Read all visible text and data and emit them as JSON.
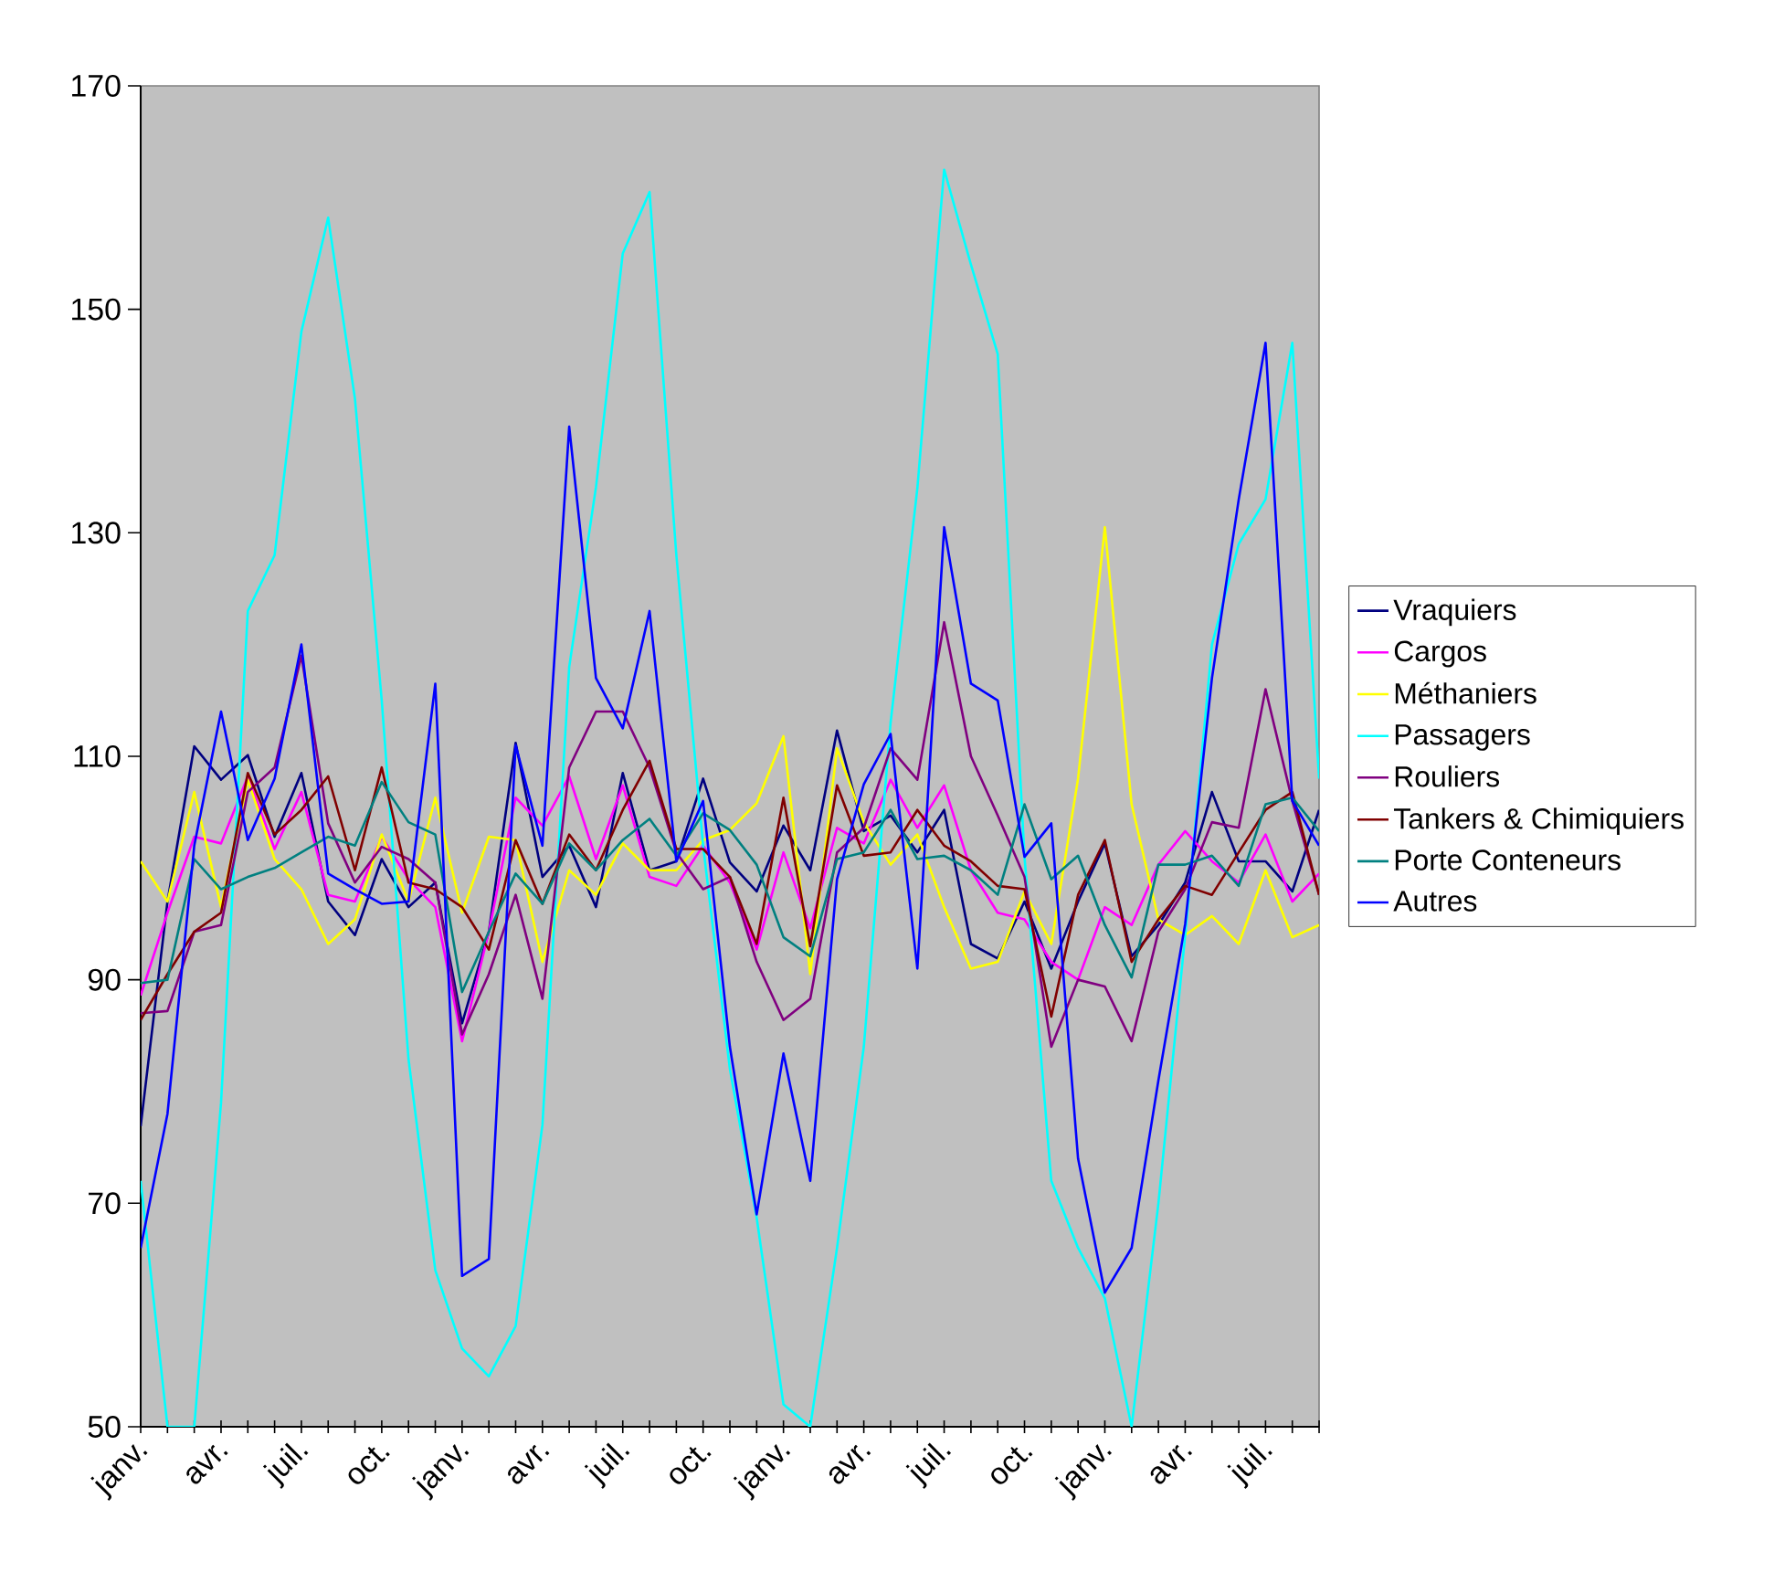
{
  "chart_data": {
    "type": "line",
    "categories": [
      "janv.",
      null,
      null,
      "avr.",
      null,
      null,
      "juil.",
      null,
      null,
      "oct.",
      null,
      null,
      "janv.",
      null,
      null,
      "avr.",
      null,
      null,
      "juil.",
      null,
      null,
      "oct.",
      null,
      null,
      "janv.",
      null,
      null,
      "avr.",
      null,
      null,
      "juil.",
      null,
      null,
      "oct.",
      null,
      null,
      "janv.",
      null,
      null,
      "avr.",
      null,
      null,
      "juil.",
      null,
      null
    ],
    "ylim": [
      50,
      170
    ],
    "yticks": [
      50,
      70,
      90,
      110,
      130,
      150,
      170
    ],
    "grid": false,
    "legend": "right",
    "series": [
      {
        "name": "Vraquiers",
        "color": "#000080",
        "values": [
          76.9,
          97.0,
          110.9,
          107.9,
          110.1,
          102.8,
          108.5,
          97.0,
          94.0,
          100.8,
          96.5,
          98.7,
          86.1,
          94.3,
          111.2,
          99.2,
          102,
          96.5,
          108.5,
          99.8,
          100.6,
          108,
          100.5,
          97.9,
          103.8,
          99.8,
          112.3,
          103.3,
          104.7,
          101.4,
          105.2,
          93.2,
          91.9,
          97.0,
          91,
          97.0,
          102.2,
          92.1,
          94.9,
          98.7,
          106.8,
          100.6,
          100.6,
          97.9,
          105.2
        ]
      },
      {
        "name": "Cargos",
        "color": "#ff00ff",
        "values": [
          88.6,
          96,
          102.8,
          102.2,
          108.2,
          101.7,
          106.8,
          97.6,
          97.0,
          102.8,
          99,
          96.5,
          84.5,
          94.3,
          106.3,
          103.8,
          108.2,
          100.8,
          107.4,
          99.2,
          98.4,
          102,
          98.7,
          92.7,
          101.4,
          94.6,
          103.6,
          102.2,
          107.9,
          103.6,
          107.4,
          99.8,
          96,
          95.4,
          91.6,
          90,
          96.5,
          94.9,
          100.3,
          103.3,
          100.6,
          98.7,
          103,
          97,
          99.5
        ]
      },
      {
        "name": "Méthaniers",
        "color": "#ffff00",
        "values": [
          100.6,
          97.0,
          106.8,
          96.5,
          107.9,
          100.8,
          98.1,
          93.2,
          95.4,
          103,
          97,
          106.3,
          96,
          102.8,
          102.5,
          91.6,
          99.8,
          97.6,
          102.2,
          99.8,
          99.8,
          102.5,
          103.4,
          105.8,
          111.8,
          90.5,
          110.7,
          104.1,
          100.3,
          103,
          96.5,
          91,
          91.6,
          97.9,
          93.2,
          108,
          130.5,
          105.7,
          95.4,
          94,
          95.7,
          93.2,
          99.8,
          93.8,
          94.9
        ]
      },
      {
        "name": "Passagers",
        "color": "#00ffff",
        "values": [
          72,
          50,
          50,
          79,
          123,
          128,
          148,
          158.2,
          142,
          115,
          82.9,
          64,
          57,
          54.5,
          59,
          77,
          118,
          134.1,
          155,
          160.5,
          128,
          102,
          82,
          68.7,
          52,
          50,
          66,
          84,
          113,
          134,
          162.5,
          154,
          146,
          101,
          72,
          66,
          61.5,
          50,
          70,
          94,
          120,
          129,
          133,
          147,
          108
        ]
      },
      {
        "name": "Rouliers",
        "color": "#800080",
        "values": [
          87,
          87.2,
          94.3,
          94.9,
          106.8,
          109,
          119,
          104,
          98.7,
          101.9,
          100.8,
          98.7,
          85.1,
          90.5,
          97.6,
          88.3,
          109,
          114,
          114,
          109,
          101.4,
          98.1,
          99.2,
          91.6,
          86.4,
          88.3,
          101.4,
          103.6,
          110.7,
          107.9,
          122,
          110,
          104.7,
          99.2,
          84,
          90,
          89.4,
          84.5,
          94.3,
          98.1,
          104.1,
          103.6,
          116,
          106,
          97.6
        ]
      },
      {
        "name": "Tankers & Chimiquiers",
        "color": "#800000",
        "values": [
          86.4,
          90.5,
          94.3,
          96,
          108.5,
          103,
          105.2,
          108.2,
          99.8,
          109,
          98.7,
          98.1,
          96.5,
          92.7,
          102.5,
          96.8,
          103,
          99.8,
          105.2,
          109.6,
          101.7,
          101.7,
          99.2,
          93.2,
          106.3,
          93,
          107.4,
          101.1,
          101.4,
          105.2,
          102,
          100.6,
          98.4,
          98.1,
          86.7,
          97.6,
          102.5,
          91.6,
          95.4,
          98.4,
          97.6,
          101.4,
          105.2,
          106.8,
          97.6
        ]
      },
      {
        "name": "Porte Conteneurs",
        "color": "#008080",
        "values": [
          89.7,
          90,
          100.8,
          98.1,
          99.2,
          100,
          101.4,
          102.8,
          102,
          107.7,
          104.1,
          103,
          88.9,
          94.3,
          99.5,
          96.8,
          102.2,
          99.8,
          102.5,
          104.4,
          101.1,
          104.9,
          103.4,
          100.3,
          93.8,
          92.1,
          100.8,
          101.4,
          105.2,
          100.8,
          101.1,
          99.8,
          97.6,
          105.7,
          99,
          101.1,
          94.9,
          90.2,
          100.3,
          100.3,
          101.1,
          98.4,
          105.7,
          106.3,
          103.3
        ]
      },
      {
        "name": "Autres",
        "color": "#0000ff",
        "values": [
          66,
          78,
          102,
          114,
          102.5,
          108,
          120,
          99.5,
          98.1,
          96.8,
          97,
          116.5,
          63.5,
          65,
          111,
          102,
          139.5,
          117,
          112.5,
          123,
          100.6,
          106,
          84,
          69,
          83.4,
          72,
          99,
          107.5,
          112,
          91,
          130.5,
          116.5,
          115,
          101,
          104,
          74,
          62,
          66,
          81,
          95,
          117,
          133,
          147,
          106,
          102
        ]
      }
    ]
  }
}
